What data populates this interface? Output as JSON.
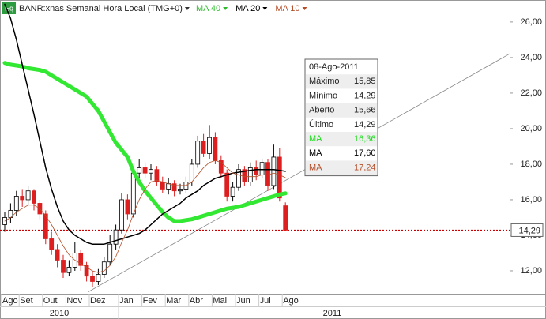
{
  "chart_data": {
    "type": "candlestick",
    "title": "BANR:xnas Semanal Hora Local (TMG+0)",
    "icon": "Eq",
    "categories": [
      "Ago",
      null,
      null,
      "Set",
      null,
      null,
      null,
      "Out",
      null,
      null,
      null,
      "Nov",
      null,
      null,
      null,
      "Dez",
      null,
      null,
      null,
      null,
      "Jan",
      null,
      null,
      null,
      "Fev",
      null,
      null,
      null,
      "Mar",
      null,
      null,
      null,
      "Abr",
      null,
      null,
      null,
      "Mai",
      null,
      null,
      null,
      "Jun",
      null,
      null,
      null,
      "Jul",
      null,
      null,
      null,
      "Ago"
    ],
    "years": [
      "2010",
      "2011"
    ],
    "open": [
      14.6,
      15.0,
      15.4,
      16.2,
      16.0,
      16.5,
      15.8,
      15.2,
      13.8,
      13.2,
      12.6,
      11.9,
      12.2,
      13.0,
      12.3,
      11.7,
      11.4,
      11.8,
      12.5,
      13.5,
      14.3,
      16.0,
      15.2,
      17.5,
      17.8,
      17.5,
      17.7,
      17.0,
      16.6,
      16.9,
      16.5,
      16.6,
      17.0,
      18.0,
      19.3,
      18.6,
      19.5,
      18.2,
      17.5,
      16.2,
      16.7,
      17.7,
      17.0,
      17.8,
      17.4,
      18.1,
      16.8,
      18.4,
      15.66
    ],
    "high": [
      15.3,
      15.8,
      16.5,
      16.6,
      16.8,
      16.6,
      16.0,
      15.4,
      14.2,
      13.5,
      12.9,
      12.6,
      13.6,
      13.2,
      12.5,
      12.0,
      12.1,
      12.8,
      14.0,
      14.6,
      16.4,
      16.3,
      17.8,
      18.3,
      18.1,
      18.0,
      17.9,
      17.3,
      17.2,
      17.1,
      16.9,
      17.3,
      18.3,
      19.6,
      19.7,
      20.2,
      19.8,
      18.5,
      17.7,
      17.0,
      18.0,
      17.9,
      18.1,
      18.2,
      18.3,
      18.3,
      19.1,
      18.9,
      15.85
    ],
    "low": [
      14.2,
      14.7,
      15.1,
      15.6,
      15.7,
      15.4,
      14.9,
      13.5,
      12.9,
      12.2,
      11.6,
      11.7,
      12.0,
      12.0,
      11.4,
      11.1,
      11.2,
      11.6,
      12.3,
      13.2,
      14.1,
      14.9,
      15.0,
      17.2,
      17.2,
      17.1,
      16.8,
      16.4,
      16.3,
      16.2,
      16.3,
      16.4,
      16.8,
      17.8,
      18.4,
      18.3,
      18.0,
      17.2,
      15.9,
      15.9,
      16.5,
      16.8,
      16.8,
      17.1,
      17.2,
      16.5,
      16.6,
      15.9,
      14.29
    ],
    "close": [
      15.0,
      15.4,
      16.2,
      16.0,
      16.5,
      15.8,
      15.2,
      13.8,
      13.2,
      12.6,
      11.9,
      12.2,
      13.0,
      12.3,
      11.7,
      11.4,
      11.8,
      12.5,
      13.5,
      14.3,
      16.0,
      15.2,
      17.5,
      17.8,
      17.5,
      17.7,
      17.0,
      16.6,
      16.9,
      16.5,
      16.6,
      17.0,
      18.0,
      19.3,
      18.6,
      19.5,
      18.2,
      17.5,
      16.2,
      16.7,
      17.7,
      17.0,
      17.8,
      17.4,
      18.1,
      16.8,
      18.4,
      16.1,
      14.29
    ],
    "up_color": "#ffffff",
    "down_color": "#dd1f1f",
    "series": [
      {
        "name": "MA 40",
        "color": "#33e833",
        "width": 5,
        "values": [
          23.7,
          23.6,
          23.55,
          23.5,
          23.4,
          23.35,
          23.3,
          23.2,
          23.0,
          22.8,
          22.6,
          22.4,
          22.2,
          22.0,
          21.8,
          21.4,
          21.0,
          20.4,
          19.8,
          19.2,
          18.8,
          18.4,
          17.6,
          17.0,
          16.5,
          16.1,
          15.7,
          15.3,
          15.0,
          14.8,
          14.8,
          14.85,
          14.9,
          15.0,
          15.1,
          15.2,
          15.3,
          15.4,
          15.5,
          15.55,
          15.6,
          15.7,
          15.8,
          15.9,
          16.0,
          16.1,
          16.2,
          16.3,
          16.36
        ]
      },
      {
        "name": "MA 20",
        "color": "#000000",
        "width": 1.5,
        "values": [
          27.0,
          26.2,
          25.0,
          23.6,
          22.2,
          20.8,
          19.3,
          17.8,
          16.6,
          15.6,
          14.8,
          14.3,
          14.0,
          13.8,
          13.6,
          13.5,
          13.5,
          13.5,
          13.6,
          13.7,
          13.8,
          13.9,
          14.0,
          14.1,
          14.3,
          14.6,
          14.9,
          15.2,
          15.4,
          15.6,
          15.8,
          16.1,
          16.3,
          16.5,
          16.8,
          17.0,
          17.2,
          17.3,
          17.4,
          17.5,
          17.55,
          17.6,
          17.65,
          17.7,
          17.7,
          17.7,
          17.7,
          17.65,
          17.6
        ]
      },
      {
        "name": "MA 10",
        "color": "#b5502a",
        "width": 0.8,
        "values": [
          14.8,
          15.0,
          15.3,
          15.5,
          15.7,
          15.7,
          15.5,
          15.1,
          14.6,
          14.0,
          13.4,
          12.9,
          12.6,
          12.4,
          12.2,
          12.0,
          11.9,
          12.0,
          12.3,
          12.8,
          13.6,
          14.3,
          15.2,
          16.0,
          16.6,
          17.0,
          17.1,
          17.0,
          16.9,
          16.8,
          16.8,
          16.8,
          17.0,
          17.4,
          17.8,
          18.1,
          18.2,
          18.1,
          17.8,
          17.5,
          17.4,
          17.3,
          17.3,
          17.3,
          17.4,
          17.4,
          17.5,
          17.4,
          17.24
        ]
      }
    ],
    "trendline": {
      "x": [
        14.2,
        86.4
      ],
      "y": [
        10.8,
        24.22
      ]
    },
    "last_price": {
      "value": 14.29,
      "label": "14,29",
      "color": "#cc0000"
    },
    "ylim": [
      10.71,
      27.24
    ],
    "yticks": [
      {
        "value": 12,
        "label": "12,00"
      },
      {
        "value": 14,
        "label": "14,00"
      },
      {
        "value": 16,
        "label": "16,00"
      },
      {
        "value": 18,
        "label": "18,00"
      },
      {
        "value": 20,
        "label": "20,00"
      },
      {
        "value": 22,
        "label": "22,00"
      },
      {
        "value": 24,
        "label": "24,00"
      },
      {
        "value": 26,
        "label": "26,00"
      }
    ],
    "tooltip": {
      "date": "08-Ago-2011",
      "rows": [
        {
          "label": "Máximo",
          "value": "15,85"
        },
        {
          "label": "Mínimo",
          "value": "14,29"
        },
        {
          "label": "Aberto",
          "value": "15,66"
        },
        {
          "label": "Último",
          "value": "14,29"
        },
        {
          "label": "MA",
          "value": "16,36"
        },
        {
          "label": "MA",
          "value": "17,60"
        },
        {
          "label": "MA",
          "value": "17,24"
        }
      ]
    }
  }
}
